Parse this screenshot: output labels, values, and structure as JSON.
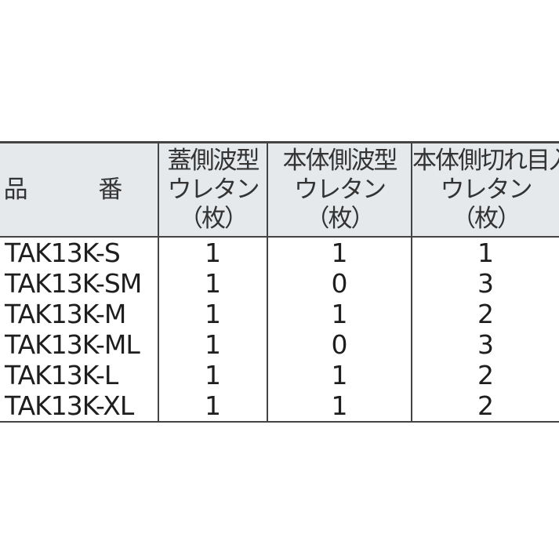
{
  "table": {
    "headers": [
      {
        "lines": [
          "品 番"
        ]
      },
      {
        "lines": [
          "蓋側波型",
          "ウレタン",
          "（枚）"
        ]
      },
      {
        "lines": [
          "本体側波型",
          "ウレタン",
          "（枚）"
        ]
      },
      {
        "lines": [
          "本体側切れ目入",
          "ウレタン",
          "（枚）"
        ]
      }
    ],
    "rows": [
      [
        "TAK13K-S",
        "1",
        "1",
        "1"
      ],
      [
        "TAK13K-SM",
        "1",
        "0",
        "3"
      ],
      [
        "TAK13K-M",
        "1",
        "1",
        "2"
      ],
      [
        "TAK13K-ML",
        "1",
        "0",
        "3"
      ],
      [
        "TAK13K-L",
        "1",
        "1",
        "2"
      ],
      [
        "TAK13K-XL",
        "1",
        "1",
        "2"
      ]
    ]
  },
  "colors": {
    "header_bg": "#e6e9ec",
    "border": "#444444"
  }
}
